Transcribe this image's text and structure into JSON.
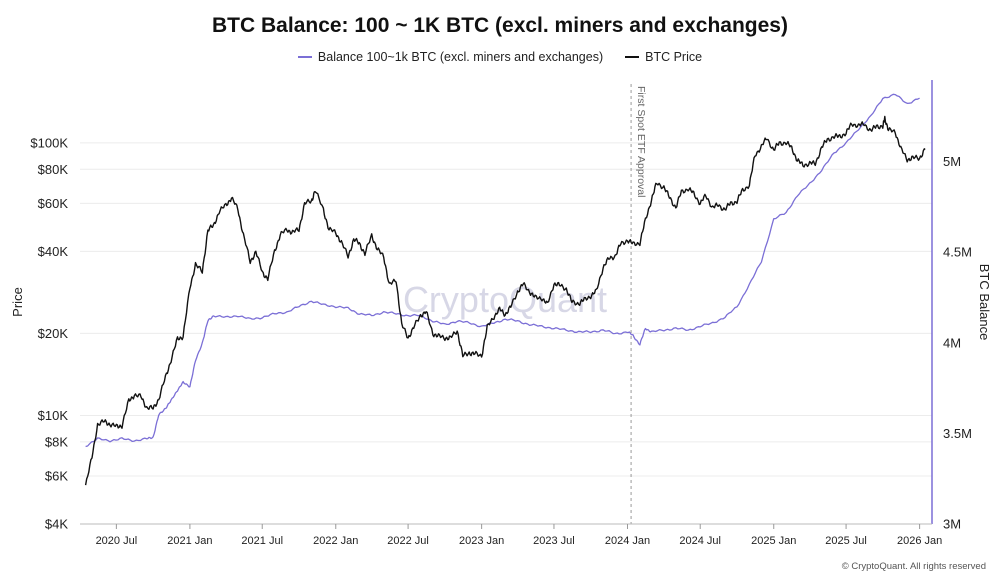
{
  "header": {
    "title": "BTC Balance: 100 ~ 1K BTC (excl. miners and exchanges)"
  },
  "legend": {
    "items": [
      {
        "label": "Balance 100~1k BTC (excl. miners and exchanges)",
        "color": "#7b6fd6"
      },
      {
        "label": "BTC Price",
        "color": "#111111"
      }
    ]
  },
  "footer": {
    "credit": "© CryptoQuant. All rights reserved",
    "watermark": "CryptoQuant"
  },
  "chart_data": {
    "type": "line",
    "x_axis": {
      "type": "date",
      "range": [
        "2020-04-01",
        "2026-02-01"
      ],
      "ticks": [
        {
          "date": "2020-07-01",
          "label": "2020 Jul"
        },
        {
          "date": "2021-01-01",
          "label": "2021 Jan"
        },
        {
          "date": "2021-07-01",
          "label": "2021 Jul"
        },
        {
          "date": "2022-01-01",
          "label": "2022 Jan"
        },
        {
          "date": "2022-07-01",
          "label": "2022 Jul"
        },
        {
          "date": "2023-01-01",
          "label": "2023 Jan"
        },
        {
          "date": "2023-07-01",
          "label": "2023 Jul"
        },
        {
          "date": "2024-01-01",
          "label": "2024 Jan"
        },
        {
          "date": "2024-07-01",
          "label": "2024 Jul"
        },
        {
          "date": "2025-01-01",
          "label": "2025 Jan"
        },
        {
          "date": "2025-07-01",
          "label": "2025 Jul"
        },
        {
          "date": "2026-01-01",
          "label": "2026 Jan"
        }
      ]
    },
    "y_left": {
      "title": "Price",
      "scale": "log",
      "range": [
        4000,
        170000
      ],
      "ticks": [
        {
          "value": 4000,
          "label": "$4K"
        },
        {
          "value": 6000,
          "label": "$6K"
        },
        {
          "value": 8000,
          "label": "$8K"
        },
        {
          "value": 10000,
          "label": "$10K"
        },
        {
          "value": 20000,
          "label": "$20K"
        },
        {
          "value": 40000,
          "label": "$40K"
        },
        {
          "value": 60000,
          "label": "$60K"
        },
        {
          "value": 80000,
          "label": "$80K"
        },
        {
          "value": 100000,
          "label": "$100K"
        }
      ]
    },
    "y_right": {
      "title": "BTC Balance",
      "scale": "linear",
      "range": [
        3000000,
        5450000
      ],
      "ticks": [
        {
          "value": 3000000,
          "label": "3M"
        },
        {
          "value": 3500000,
          "label": "3.5M"
        },
        {
          "value": 4000000,
          "label": "4M"
        },
        {
          "value": 4500000,
          "label": "4.5M"
        },
        {
          "value": 5000000,
          "label": "5M"
        }
      ]
    },
    "annotations": [
      {
        "date": "2024-01-10",
        "label": "First Spot ETF Approval"
      }
    ],
    "grid": "horizontal",
    "legend_position": "top-center",
    "series": [
      {
        "name": "Balance 100~1k BTC (excl. miners and exchanges)",
        "axis": "right",
        "color": "#7b6fd6",
        "points": [
          [
            "2020-04-15",
            3430000
          ],
          [
            "2020-05-15",
            3470000
          ],
          [
            "2020-06-15",
            3460000
          ],
          [
            "2020-07-15",
            3470000
          ],
          [
            "2020-08-15",
            3460000
          ],
          [
            "2020-09-15",
            3470000
          ],
          [
            "2020-10-01",
            3480000
          ],
          [
            "2020-10-15",
            3600000
          ],
          [
            "2020-11-01",
            3640000
          ],
          [
            "2020-11-15",
            3680000
          ],
          [
            "2020-12-01",
            3740000
          ],
          [
            "2020-12-15",
            3780000
          ],
          [
            "2021-01-01",
            3760000
          ],
          [
            "2021-01-15",
            3900000
          ],
          [
            "2021-02-01",
            4000000
          ],
          [
            "2021-02-15",
            4120000
          ],
          [
            "2021-03-01",
            4150000
          ],
          [
            "2021-04-01",
            4140000
          ],
          [
            "2021-05-01",
            4150000
          ],
          [
            "2021-06-01",
            4130000
          ],
          [
            "2021-07-01",
            4140000
          ],
          [
            "2021-08-01",
            4160000
          ],
          [
            "2021-09-01",
            4170000
          ],
          [
            "2021-10-01",
            4200000
          ],
          [
            "2021-11-01",
            4230000
          ],
          [
            "2021-12-01",
            4210000
          ],
          [
            "2022-01-01",
            4200000
          ],
          [
            "2022-02-01",
            4190000
          ],
          [
            "2022-03-01",
            4160000
          ],
          [
            "2022-04-01",
            4150000
          ],
          [
            "2022-05-01",
            4170000
          ],
          [
            "2022-06-01",
            4160000
          ],
          [
            "2022-07-01",
            4150000
          ],
          [
            "2022-08-01",
            4150000
          ],
          [
            "2022-09-01",
            4120000
          ],
          [
            "2022-10-01",
            4100000
          ],
          [
            "2022-11-01",
            4120000
          ],
          [
            "2022-12-01",
            4110000
          ],
          [
            "2023-01-01",
            4090000
          ],
          [
            "2023-02-01",
            4110000
          ],
          [
            "2023-03-01",
            4130000
          ],
          [
            "2023-04-01",
            4120000
          ],
          [
            "2023-05-01",
            4100000
          ],
          [
            "2023-06-01",
            4090000
          ],
          [
            "2023-07-01",
            4080000
          ],
          [
            "2023-08-01",
            4070000
          ],
          [
            "2023-09-01",
            4060000
          ],
          [
            "2023-10-01",
            4060000
          ],
          [
            "2023-11-01",
            4070000
          ],
          [
            "2023-12-01",
            4050000
          ],
          [
            "2024-01-01",
            4060000
          ],
          [
            "2024-01-15",
            4040000
          ],
          [
            "2024-02-01",
            3990000
          ],
          [
            "2024-02-15",
            4080000
          ],
          [
            "2024-03-01",
            4060000
          ],
          [
            "2024-04-01",
            4070000
          ],
          [
            "2024-05-01",
            4080000
          ],
          [
            "2024-06-01",
            4070000
          ],
          [
            "2024-07-01",
            4090000
          ],
          [
            "2024-08-01",
            4110000
          ],
          [
            "2024-09-01",
            4140000
          ],
          [
            "2024-10-01",
            4200000
          ],
          [
            "2024-11-01",
            4320000
          ],
          [
            "2024-12-01",
            4450000
          ],
          [
            "2025-01-01",
            4680000
          ],
          [
            "2025-02-01",
            4720000
          ],
          [
            "2025-03-01",
            4810000
          ],
          [
            "2025-04-01",
            4880000
          ],
          [
            "2025-05-01",
            4950000
          ],
          [
            "2025-06-01",
            5050000
          ],
          [
            "2025-07-01",
            5100000
          ],
          [
            "2025-08-01",
            5180000
          ],
          [
            "2025-09-01",
            5250000
          ],
          [
            "2025-10-01",
            5350000
          ],
          [
            "2025-11-01",
            5370000
          ],
          [
            "2025-12-01",
            5320000
          ],
          [
            "2026-01-01",
            5350000
          ]
        ]
      },
      {
        "name": "BTC Price",
        "axis": "left",
        "color": "#111111",
        "points": [
          [
            "2020-04-15",
            5600
          ],
          [
            "2020-05-01",
            7000
          ],
          [
            "2020-05-15",
            9300
          ],
          [
            "2020-06-01",
            9500
          ],
          [
            "2020-06-15",
            9300
          ],
          [
            "2020-07-01",
            9100
          ],
          [
            "2020-07-15",
            9200
          ],
          [
            "2020-08-01",
            11300
          ],
          [
            "2020-08-15",
            11900
          ],
          [
            "2020-09-01",
            11700
          ],
          [
            "2020-09-15",
            10700
          ],
          [
            "2020-10-01",
            10600
          ],
          [
            "2020-10-15",
            11500
          ],
          [
            "2020-11-01",
            13800
          ],
          [
            "2020-11-15",
            16000
          ],
          [
            "2020-12-01",
            19100
          ],
          [
            "2020-12-15",
            19500
          ],
          [
            "2021-01-01",
            29300
          ],
          [
            "2021-01-15",
            36000
          ],
          [
            "2021-02-01",
            33500
          ],
          [
            "2021-02-15",
            48000
          ],
          [
            "2021-03-01",
            49500
          ],
          [
            "2021-03-15",
            56000
          ],
          [
            "2021-04-01",
            59000
          ],
          [
            "2021-04-15",
            63000
          ],
          [
            "2021-05-01",
            57000
          ],
          [
            "2021-05-15",
            46000
          ],
          [
            "2021-06-01",
            36500
          ],
          [
            "2021-06-15",
            40000
          ],
          [
            "2021-07-01",
            33500
          ],
          [
            "2021-07-15",
            31800
          ],
          [
            "2021-08-01",
            40000
          ],
          [
            "2021-08-15",
            46000
          ],
          [
            "2021-09-01",
            48000
          ],
          [
            "2021-09-15",
            47000
          ],
          [
            "2021-10-01",
            48000
          ],
          [
            "2021-10-15",
            60000
          ],
          [
            "2021-11-01",
            61000
          ],
          [
            "2021-11-10",
            67000
          ],
          [
            "2021-12-01",
            57000
          ],
          [
            "2021-12-15",
            48000
          ],
          [
            "2022-01-01",
            47000
          ],
          [
            "2022-01-15",
            43000
          ],
          [
            "2022-02-01",
            38500
          ],
          [
            "2022-02-15",
            44000
          ],
          [
            "2022-03-01",
            43000
          ],
          [
            "2022-03-15",
            39000
          ],
          [
            "2022-04-01",
            46000
          ],
          [
            "2022-04-15",
            40500
          ],
          [
            "2022-05-01",
            38500
          ],
          [
            "2022-05-15",
            30000
          ],
          [
            "2022-06-01",
            31500
          ],
          [
            "2022-06-15",
            21500
          ],
          [
            "2022-07-01",
            19300
          ],
          [
            "2022-07-15",
            21000
          ],
          [
            "2022-08-01",
            23300
          ],
          [
            "2022-08-15",
            24000
          ],
          [
            "2022-09-01",
            20000
          ],
          [
            "2022-09-15",
            19500
          ],
          [
            "2022-10-01",
            19300
          ],
          [
            "2022-10-15",
            19200
          ],
          [
            "2022-11-01",
            20500
          ],
          [
            "2022-11-15",
            16500
          ],
          [
            "2022-12-01",
            17000
          ],
          [
            "2022-12-15",
            16800
          ],
          [
            "2023-01-01",
            16600
          ],
          [
            "2023-01-15",
            21000
          ],
          [
            "2023-02-01",
            23100
          ],
          [
            "2023-02-15",
            24500
          ],
          [
            "2023-03-01",
            23500
          ],
          [
            "2023-03-15",
            25000
          ],
          [
            "2023-04-01",
            28500
          ],
          [
            "2023-04-15",
            30300
          ],
          [
            "2023-05-01",
            28500
          ],
          [
            "2023-05-15",
            27000
          ],
          [
            "2023-06-01",
            27000
          ],
          [
            "2023-06-15",
            25500
          ],
          [
            "2023-07-01",
            30500
          ],
          [
            "2023-07-15",
            30000
          ],
          [
            "2023-08-01",
            29200
          ],
          [
            "2023-08-15",
            26000
          ],
          [
            "2023-09-01",
            25800
          ],
          [
            "2023-09-15",
            26500
          ],
          [
            "2023-10-01",
            27500
          ],
          [
            "2023-10-15",
            28500
          ],
          [
            "2023-11-01",
            35000
          ],
          [
            "2023-11-15",
            37500
          ],
          [
            "2023-12-01",
            38500
          ],
          [
            "2023-12-15",
            42500
          ],
          [
            "2024-01-01",
            44000
          ],
          [
            "2024-01-15",
            42500
          ],
          [
            "2024-02-01",
            43000
          ],
          [
            "2024-02-15",
            52000
          ],
          [
            "2024-03-01",
            62000
          ],
          [
            "2024-03-14",
            71000
          ],
          [
            "2024-04-01",
            69000
          ],
          [
            "2024-04-15",
            63000
          ],
          [
            "2024-05-01",
            58000
          ],
          [
            "2024-05-15",
            66000
          ],
          [
            "2024-06-01",
            68000
          ],
          [
            "2024-06-15",
            65000
          ],
          [
            "2024-07-01",
            60000
          ],
          [
            "2024-07-15",
            64000
          ],
          [
            "2024-08-01",
            58000
          ],
          [
            "2024-08-15",
            59000
          ],
          [
            "2024-09-01",
            57000
          ],
          [
            "2024-09-15",
            60000
          ],
          [
            "2024-10-01",
            61000
          ],
          [
            "2024-10-15",
            67000
          ],
          [
            "2024-11-01",
            70000
          ],
          [
            "2024-11-15",
            90000
          ],
          [
            "2024-12-01",
            97000
          ],
          [
            "2024-12-15",
            104000
          ],
          [
            "2025-01-01",
            94000
          ],
          [
            "2025-01-15",
            100000
          ],
          [
            "2025-02-01",
            100000
          ],
          [
            "2025-02-15",
            96000
          ],
          [
            "2025-03-01",
            86000
          ],
          [
            "2025-03-15",
            83000
          ],
          [
            "2025-04-01",
            84000
          ],
          [
            "2025-04-15",
            84000
          ],
          [
            "2025-05-01",
            96000
          ],
          [
            "2025-05-15",
            103000
          ],
          [
            "2025-06-01",
            105000
          ],
          [
            "2025-06-15",
            106000
          ],
          [
            "2025-07-01",
            108000
          ],
          [
            "2025-07-15",
            118000
          ],
          [
            "2025-08-01",
            115000
          ],
          [
            "2025-08-15",
            118000
          ],
          [
            "2025-09-01",
            110000
          ],
          [
            "2025-09-15",
            116000
          ],
          [
            "2025-10-01",
            114000
          ],
          [
            "2025-10-06",
            124000
          ],
          [
            "2025-10-15",
            111000
          ],
          [
            "2025-11-01",
            110000
          ],
          [
            "2025-11-15",
            95000
          ],
          [
            "2025-12-01",
            87000
          ],
          [
            "2025-12-15",
            88000
          ],
          [
            "2026-01-01",
            88000
          ],
          [
            "2026-01-15",
            95000
          ]
        ]
      }
    ]
  }
}
